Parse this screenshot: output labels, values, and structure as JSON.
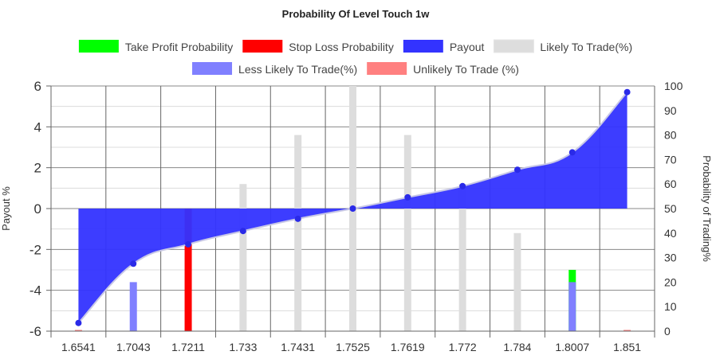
{
  "chart_data": {
    "type": "bar",
    "title": "Probability Of Level Touch  1w",
    "categories": [
      "1.6541",
      "1.7043",
      "1.7211",
      "1.733",
      "1.7431",
      "1.7525",
      "1.7619",
      "1.772",
      "1.784",
      "1.8007",
      "1.851"
    ],
    "ylabel": "Payout %",
    "y2label": "Probability of Trading%",
    "ylim": [
      -6,
      6
    ],
    "y2lim": [
      0,
      100
    ],
    "y_ticks": [
      "6",
      "4",
      "2",
      "0",
      "-2",
      "-4",
      "-6"
    ],
    "y2_ticks": [
      "100",
      "90",
      "80",
      "70",
      "60",
      "50",
      "40",
      "30",
      "20",
      "10",
      "0"
    ],
    "grid": true,
    "legend_position": "top",
    "legend": [
      {
        "label": "Take Profit Probability",
        "color": "#00ff00"
      },
      {
        "label": "Stop Loss Probability",
        "color": "#ff0000"
      },
      {
        "label": "Payout",
        "color": "#3333ff"
      },
      {
        "label": "Likely To Trade(%)",
        "color": "#dddddd"
      },
      {
        "label": "Less Likely To Trade(%)",
        "color": "#8080ff"
      },
      {
        "label": "Unlikely To Trade (%)",
        "color": "#ff8080"
      }
    ],
    "series": [
      {
        "name": "Take Profit Probability",
        "axis": "right",
        "color": "#00ff00",
        "values": [
          0,
          0,
          0,
          0,
          0,
          0,
          0,
          0,
          0,
          25,
          0
        ]
      },
      {
        "name": "Stop Loss Probability",
        "axis": "right",
        "color": "#ff0000",
        "values": [
          0,
          0,
          50,
          0,
          0,
          0,
          0,
          0,
          0,
          0,
          0
        ]
      },
      {
        "name": "Payout",
        "axis": "left",
        "type": "area",
        "color": "#3333ff",
        "values": [
          -5.6,
          -2.7,
          -1.75,
          -1.1,
          -0.5,
          0.0,
          0.55,
          1.1,
          1.9,
          2.75,
          5.7
        ]
      },
      {
        "name": "Likely To Trade(%)",
        "axis": "right",
        "color": "#dddddd",
        "values": [
          0,
          0,
          0,
          60,
          80,
          100,
          80,
          60,
          40,
          0,
          0
        ]
      },
      {
        "name": "Less Likely To Trade(%)",
        "axis": "right",
        "color": "#8080ff",
        "values": [
          0,
          20,
          0,
          0,
          0,
          0,
          0,
          0,
          0,
          20,
          0
        ]
      },
      {
        "name": "Unlikely To Trade (%)",
        "axis": "right",
        "color": "#ff8080",
        "values": [
          0.5,
          0,
          0,
          0,
          0,
          0,
          0,
          0,
          0,
          0,
          0.5
        ]
      }
    ]
  }
}
